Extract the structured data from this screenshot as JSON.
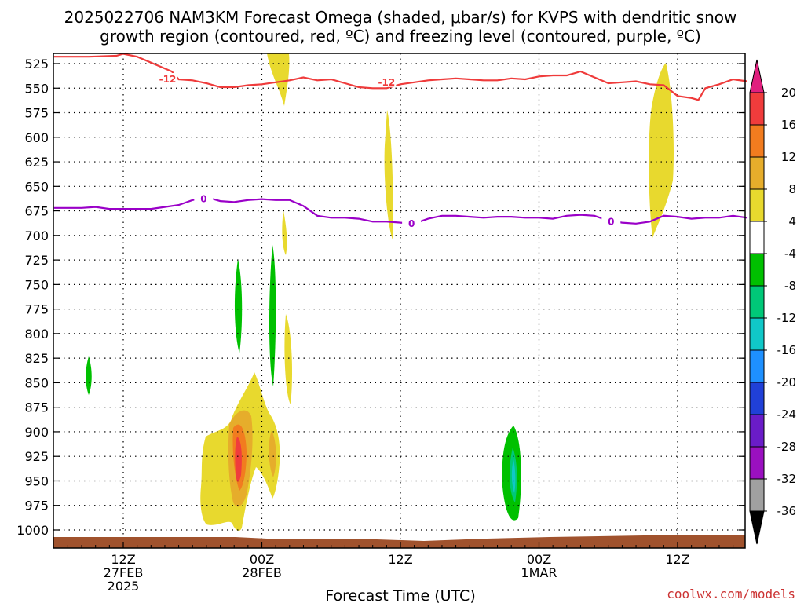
{
  "title_line1": "2025022706 NAM3KM Forecast Omega (shaded, μbar/s) for KVPS with dendritic snow",
  "title_line2": "growth region (contoured, red, ºC) and freezing level (contoured, purple, ºC)",
  "credit": "coolwx.com/models",
  "colors": {
    "red_contour": "#ef3b3b",
    "purple_contour": "#9a00c8",
    "ground": "#a0522d",
    "credit": "#cc3333",
    "grid": "#000000"
  },
  "chart_data": {
    "type": "heatmap",
    "xlabel": "Forecast Time (UTC)",
    "ylabel": "",
    "x_range_hours": [
      -2,
      48
    ],
    "y_range_mb": [
      515,
      1010
    ],
    "y_ticks": [
      525,
      550,
      575,
      600,
      625,
      650,
      675,
      700,
      725,
      750,
      775,
      800,
      825,
      850,
      875,
      900,
      925,
      950,
      975,
      1000
    ],
    "x_ticks": [
      {
        "hour": 3,
        "lines": [
          "12Z",
          "27FEB",
          "2025"
        ]
      },
      {
        "hour": 13,
        "lines": [
          "00Z",
          "28FEB"
        ]
      },
      {
        "hour": 23,
        "lines": [
          "12Z"
        ]
      },
      {
        "hour": 33,
        "lines": [
          "00Z",
          "1MAR"
        ]
      },
      {
        "hour": 43,
        "lines": [
          "12Z"
        ]
      }
    ],
    "grid": true,
    "colorbar": {
      "labels": [
        "20",
        "16",
        "12",
        "8",
        "4",
        "-4",
        "-8",
        "-12",
        "-16",
        "-20",
        "-24",
        "-28",
        "-32",
        "-36"
      ],
      "colors": [
        "#e01f7e",
        "#f03c3c",
        "#f27c1f",
        "#e6ad2b",
        "#e8d92e",
        "#ffffff",
        "#00c000",
        "#00c878",
        "#10c8c8",
        "#1e90ff",
        "#2040d8",
        "#6a1cc8",
        "#9a10c0",
        "#a0a0a0",
        "#000000"
      ]
    },
    "contours": [
      {
        "name": "-12",
        "color": "#ef3b3b",
        "points": [
          [
            -2,
            518
          ],
          [
            0.5,
            518
          ],
          [
            2.5,
            517
          ],
          [
            3,
            515
          ],
          [
            4,
            518
          ],
          [
            6.5,
            533
          ],
          [
            7,
            541
          ],
          [
            8,
            542
          ],
          [
            9,
            545
          ],
          [
            10,
            549
          ],
          [
            11,
            549
          ],
          [
            12,
            547
          ],
          [
            13,
            546
          ],
          [
            14,
            544
          ],
          [
            15,
            542
          ],
          [
            16,
            539
          ],
          [
            17,
            542
          ],
          [
            18,
            541
          ],
          [
            19,
            545
          ],
          [
            20,
            549
          ],
          [
            21,
            550
          ],
          [
            22,
            550
          ],
          [
            23,
            546
          ],
          [
            24,
            544
          ],
          [
            25,
            542
          ],
          [
            26,
            541
          ],
          [
            27,
            540
          ],
          [
            28,
            541
          ],
          [
            29,
            542
          ],
          [
            30,
            542
          ],
          [
            31,
            540
          ],
          [
            32,
            541
          ],
          [
            33,
            538
          ],
          [
            34,
            537
          ],
          [
            35,
            537
          ],
          [
            36,
            533
          ],
          [
            37,
            539
          ],
          [
            38,
            545
          ],
          [
            39,
            544
          ],
          [
            40,
            543
          ],
          [
            41,
            546
          ],
          [
            42,
            547
          ],
          [
            43,
            558
          ],
          [
            44,
            560
          ],
          [
            44.5,
            562
          ],
          [
            45,
            550
          ],
          [
            46,
            546
          ],
          [
            47,
            541
          ],
          [
            48,
            543
          ]
        ],
        "labels": [
          [
            6.2,
            541
          ],
          [
            22,
            544
          ]
        ]
      },
      {
        "name": "0",
        "color": "#9a00c8",
        "points": [
          [
            -2,
            672
          ],
          [
            0,
            672
          ],
          [
            1,
            671
          ],
          [
            2,
            673
          ],
          [
            3,
            673
          ],
          [
            4,
            673
          ],
          [
            5,
            673
          ],
          [
            6,
            671
          ],
          [
            7,
            669
          ],
          [
            8,
            664
          ],
          [
            8.8,
            662
          ],
          [
            9.5,
            663
          ],
          [
            10,
            665
          ],
          [
            11,
            666
          ],
          [
            12,
            664
          ],
          [
            13,
            663
          ],
          [
            14,
            664
          ],
          [
            15,
            664
          ],
          [
            16,
            670
          ],
          [
            17,
            680
          ],
          [
            18,
            682
          ],
          [
            19,
            682
          ],
          [
            20,
            683
          ],
          [
            21,
            686
          ],
          [
            22,
            686
          ],
          [
            23,
            687
          ],
          [
            24,
            688
          ],
          [
            25,
            683
          ],
          [
            26,
            680
          ],
          [
            27,
            680
          ],
          [
            28,
            681
          ],
          [
            29,
            682
          ],
          [
            30,
            681
          ],
          [
            31,
            681
          ],
          [
            32,
            682
          ],
          [
            33,
            682
          ],
          [
            34,
            683
          ],
          [
            35,
            680
          ],
          [
            36,
            679
          ],
          [
            37,
            680
          ],
          [
            38,
            685
          ],
          [
            39,
            687
          ],
          [
            40,
            688
          ],
          [
            41,
            686
          ],
          [
            42,
            680
          ],
          [
            43,
            681
          ],
          [
            44,
            683
          ],
          [
            45,
            682
          ],
          [
            46,
            682
          ],
          [
            47,
            680
          ],
          [
            48,
            682
          ]
        ],
        "labels": [
          [
            8.8,
            663
          ],
          [
            23.8,
            688
          ],
          [
            38.2,
            686
          ]
        ]
      }
    ]
  }
}
